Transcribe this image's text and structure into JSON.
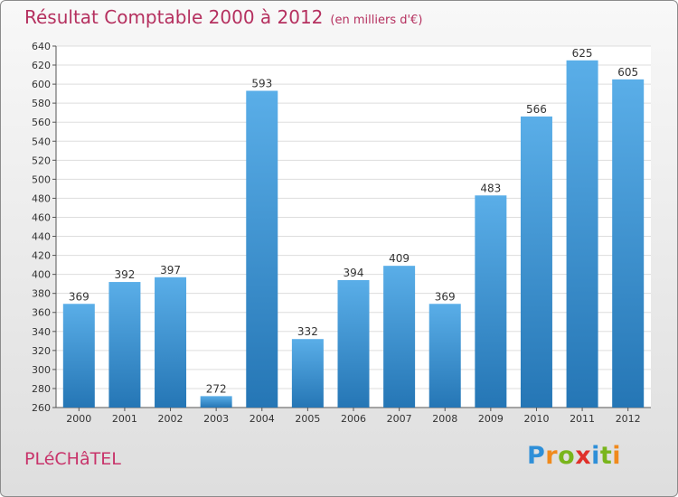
{
  "header": {
    "title": "Résultat Comptable 2000 à 2012",
    "subtitle": "(en milliers d'€)"
  },
  "footer": {
    "town": "PLéCHâTEL",
    "logo_letters": [
      {
        "char": "P",
        "color": "#2e8fd8"
      },
      {
        "char": "r",
        "color": "#f08a1c"
      },
      {
        "char": "o",
        "color": "#79b51c"
      },
      {
        "char": "x",
        "color": "#e0302a"
      },
      {
        "char": "i",
        "color": "#2e8fd8"
      },
      {
        "char": "t",
        "color": "#79b51c"
      },
      {
        "char": "i",
        "color": "#f08a1c"
      }
    ]
  },
  "colors": {
    "bar_light": "#5aaee8",
    "bar_dark": "#2576b5",
    "title": "#b5305f"
  },
  "chart_data": {
    "type": "bar",
    "title": "Résultat Comptable 2000 à 2012",
    "subtitle": "(en milliers d'€)",
    "categories": [
      "2000",
      "2001",
      "2002",
      "2003",
      "2004",
      "2005",
      "2006",
      "2007",
      "2008",
      "2009",
      "2010",
      "2011",
      "2012"
    ],
    "values": [
      369,
      392,
      397,
      272,
      593,
      332,
      394,
      409,
      369,
      483,
      566,
      625,
      605
    ],
    "ylim": [
      260,
      640
    ],
    "yticks": [
      260,
      280,
      300,
      320,
      340,
      360,
      380,
      400,
      420,
      440,
      460,
      480,
      500,
      520,
      540,
      560,
      580,
      600,
      620,
      640
    ],
    "grid": true,
    "xlabel": "",
    "ylabel": ""
  }
}
